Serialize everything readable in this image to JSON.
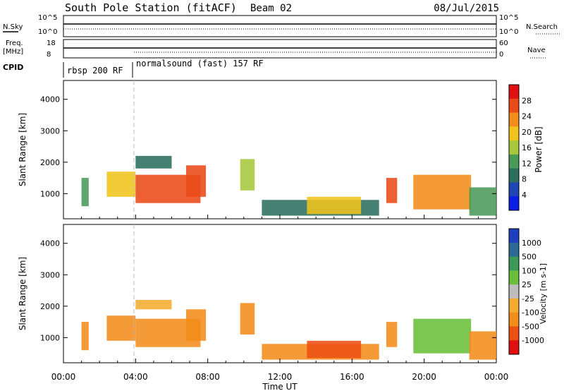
{
  "header": {
    "title": "South Pole Station (fitACF)",
    "beam": "Beam 02",
    "date": "08/Jul/2015"
  },
  "top_strip": {
    "nsky_label": "N.Sky",
    "nsearch_label": "N.Search",
    "freq_label": "Freq.",
    "freq_unit": "[MHz]",
    "nave_label": "Nave",
    "cpid_label": "CPID",
    "nsky_ticks": [
      "10^5",
      "10^0"
    ],
    "freq_ticks": [
      "18",
      "8"
    ],
    "nave_ticks": [
      "60",
      "0"
    ],
    "cpid_segments": [
      {
        "label": "rbsp 200 RF",
        "start_hour": 0.0,
        "end_hour": 3.83
      },
      {
        "label": "normalsound (fast) 157 RF",
        "start_hour": 3.83,
        "end_hour": 24.0
      }
    ]
  },
  "colors": {
    "power": [
      "#0a1ee6",
      "#1e46b4",
      "#2c6e5e",
      "#4a9a5a",
      "#a6c83a",
      "#f0c41c",
      "#f28c1a",
      "#ea4a18",
      "#e01010"
    ],
    "velocity": [
      "#e01010",
      "#ee5014",
      "#f28c1a",
      "#f3ab30",
      "#bdbdbd",
      "#6abe3a",
      "#3b9a5a",
      "#2e6a96",
      "#1e3ec0"
    ]
  },
  "chart_data": [
    {
      "type": "heatmap",
      "name": "power",
      "ylabel": "Slant Range [km]",
      "xlabel": "Time UT",
      "x_ticks": [
        "00:00",
        "04:00",
        "08:00",
        "12:00",
        "16:00",
        "20:00",
        "00:00"
      ],
      "x_tick_hours": [
        0,
        4,
        8,
        12,
        16,
        20,
        24
      ],
      "y_ticks": [
        1000,
        2000,
        3000,
        4000
      ],
      "ylim": [
        200,
        4600
      ],
      "xlim_hours": [
        0,
        24
      ],
      "colorbar_label": "Power [dB]",
      "colorbar_ticks": [
        "4",
        "8",
        "12",
        "16",
        "20",
        "24",
        "28"
      ],
      "regions": [
        {
          "t0": 1.0,
          "t1": 1.4,
          "r0": 600,
          "r1": 1500,
          "value": 12
        },
        {
          "t0": 2.4,
          "t1": 4.0,
          "r0": 900,
          "r1": 1700,
          "value": 20
        },
        {
          "t0": 4.0,
          "t1": 7.6,
          "r0": 700,
          "r1": 1600,
          "value": 25
        },
        {
          "t0": 6.8,
          "t1": 7.9,
          "r0": 900,
          "r1": 1900,
          "value": 27
        },
        {
          "t0": 4.0,
          "t1": 6.0,
          "r0": 1800,
          "r1": 2200,
          "value": 10
        },
        {
          "t0": 9.8,
          "t1": 10.6,
          "r0": 1100,
          "r1": 2100,
          "value": 15
        },
        {
          "t0": 11.0,
          "t1": 17.5,
          "r0": 300,
          "r1": 800,
          "value": 10
        },
        {
          "t0": 13.5,
          "t1": 16.5,
          "r0": 350,
          "r1": 900,
          "value": 18
        },
        {
          "t0": 17.9,
          "t1": 18.5,
          "r0": 700,
          "r1": 1500,
          "value": 26
        },
        {
          "t0": 19.4,
          "t1": 22.6,
          "r0": 500,
          "r1": 1600,
          "value": 22
        },
        {
          "t0": 22.5,
          "t1": 24.0,
          "r0": 300,
          "r1": 1200,
          "value": 12
        }
      ]
    },
    {
      "type": "heatmap",
      "name": "velocity",
      "ylabel": "Slant Range [km]",
      "xlabel": "Time UT",
      "x_ticks": [
        "00:00",
        "04:00",
        "08:00",
        "12:00",
        "16:00",
        "20:00",
        "00:00"
      ],
      "x_tick_hours": [
        0,
        4,
        8,
        12,
        16,
        20,
        24
      ],
      "y_ticks": [
        1000,
        2000,
        3000,
        4000
      ],
      "ylim": [
        200,
        4600
      ],
      "xlim_hours": [
        0,
        24
      ],
      "colorbar_label": "Velocity [m s-1]",
      "colorbar_ticks": [
        "1000",
        "500",
        "100",
        "25",
        "-25",
        "-100",
        "-500",
        "-1000"
      ],
      "regions": [
        {
          "t0": 1.0,
          "t1": 1.4,
          "r0": 600,
          "r1": 1500,
          "value": -100
        },
        {
          "t0": 2.4,
          "t1": 4.0,
          "r0": 900,
          "r1": 1700,
          "value": -300
        },
        {
          "t0": 4.0,
          "t1": 7.6,
          "r0": 700,
          "r1": 1600,
          "value": -300
        },
        {
          "t0": 6.8,
          "t1": 7.9,
          "r0": 900,
          "r1": 1900,
          "value": -300
        },
        {
          "t0": 4.0,
          "t1": 6.0,
          "r0": 1900,
          "r1": 2200,
          "value": -50
        },
        {
          "t0": 9.8,
          "t1": 10.6,
          "r0": 1100,
          "r1": 2100,
          "value": -300
        },
        {
          "t0": 11.0,
          "t1": 17.5,
          "r0": 300,
          "r1": 800,
          "value": -300
        },
        {
          "t0": 13.5,
          "t1": 16.5,
          "r0": 350,
          "r1": 900,
          "value": -500
        },
        {
          "t0": 17.9,
          "t1": 18.5,
          "r0": 700,
          "r1": 1500,
          "value": -300
        },
        {
          "t0": 19.4,
          "t1": 22.6,
          "r0": 500,
          "r1": 1600,
          "value": 100
        },
        {
          "t0": 22.5,
          "t1": 24.0,
          "r0": 300,
          "r1": 1200,
          "value": -100
        }
      ]
    }
  ]
}
